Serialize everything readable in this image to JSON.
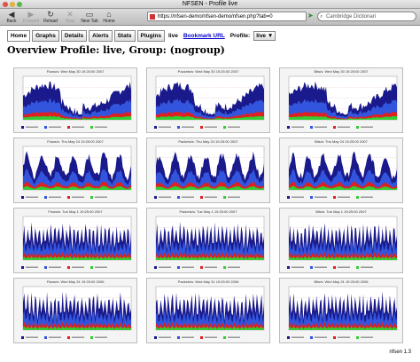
{
  "window": {
    "title": "NFSEN - Profile live"
  },
  "toolbar": {
    "back": "Back",
    "forward": "Forward",
    "reload": "Reload",
    "stop": "Stop",
    "new_tab": "New Tab",
    "home": "Home"
  },
  "address": {
    "url": "https://nfsen-demo/nfsen-demo/nfsen.php?tab=0"
  },
  "search": {
    "value": "Cambridge Dictionari"
  },
  "nav": {
    "tabs": [
      "Home",
      "Graphs",
      "Details",
      "Alerts",
      "Stats",
      "Plugins"
    ],
    "active_tab": "Home",
    "live": "live",
    "bookmark": "Bookmark URL",
    "profile_label": "Profile:",
    "profile_value": "live ▼"
  },
  "page": {
    "title": "Overview Profile: live, Group: (nogroup)"
  },
  "graphs": [
    {
      "label": "Flows/s: Wed May 30 19:25:00 2007"
    },
    {
      "label": "Packets/s: Wed May 30 19:25:00 2007"
    },
    {
      "label": "Bits/s: Wed May 30 19:25:00 2007"
    },
    {
      "label": "Flows/s: Thu May 24 19:25:00 2007"
    },
    {
      "label": "Packets/s: Thu May 24 19:25:00 2007"
    },
    {
      "label": "Bits/s: Thu May 24 19:25:00 2007"
    },
    {
      "label": "Flows/s: Tue May 1 19:25:00 2007"
    },
    {
      "label": "Packets/s: Tue May 1 19:25:00 2007"
    },
    {
      "label": "Bits/s: Tue May 1 19:25:00 2007"
    },
    {
      "label": "Flows/s: Wed May 31 19:25:00 2006"
    },
    {
      "label": "Packets/s: Wed May 31 19:25:00 2006"
    },
    {
      "label": "Bits/s: Wed May 31 19:25:00 2006"
    }
  ],
  "colors": {
    "layer1": "#1a1a8c",
    "layer2": "#3355dd",
    "layer3": "#e02020",
    "layer4": "#33cc33",
    "link": "#0000cc"
  },
  "footer": {
    "version": "nfsen 1.3"
  }
}
